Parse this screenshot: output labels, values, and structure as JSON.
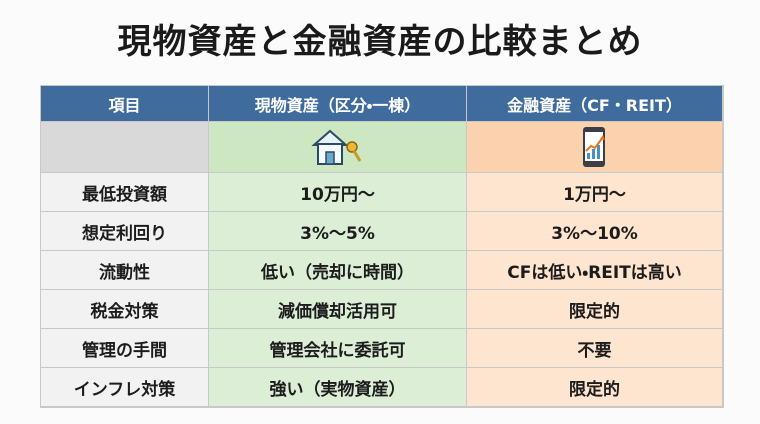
{
  "title": "現物資産と金融資産の比較まとめ",
  "table": {
    "headers": [
      "項目",
      "現物資産（区分・一棟）",
      "金融資産（CF・REIT）"
    ],
    "rows": [
      [
        "最低投資額",
        "10万円〜",
        "1万円〜"
      ],
      [
        "想定利回り",
        "3%〜5%",
        "3%〜10%"
      ],
      [
        "流動性",
        "低い（売却に時間）",
        "CFは低い・REITは高い"
      ],
      [
        "税金対策",
        "減価償却活用可",
        "限定的"
      ],
      [
        "管理の手間",
        "管理会社に委託可",
        "不要"
      ],
      [
        "インフレ対策",
        "強い（実物資産）",
        "限定的"
      ]
    ]
  }
}
